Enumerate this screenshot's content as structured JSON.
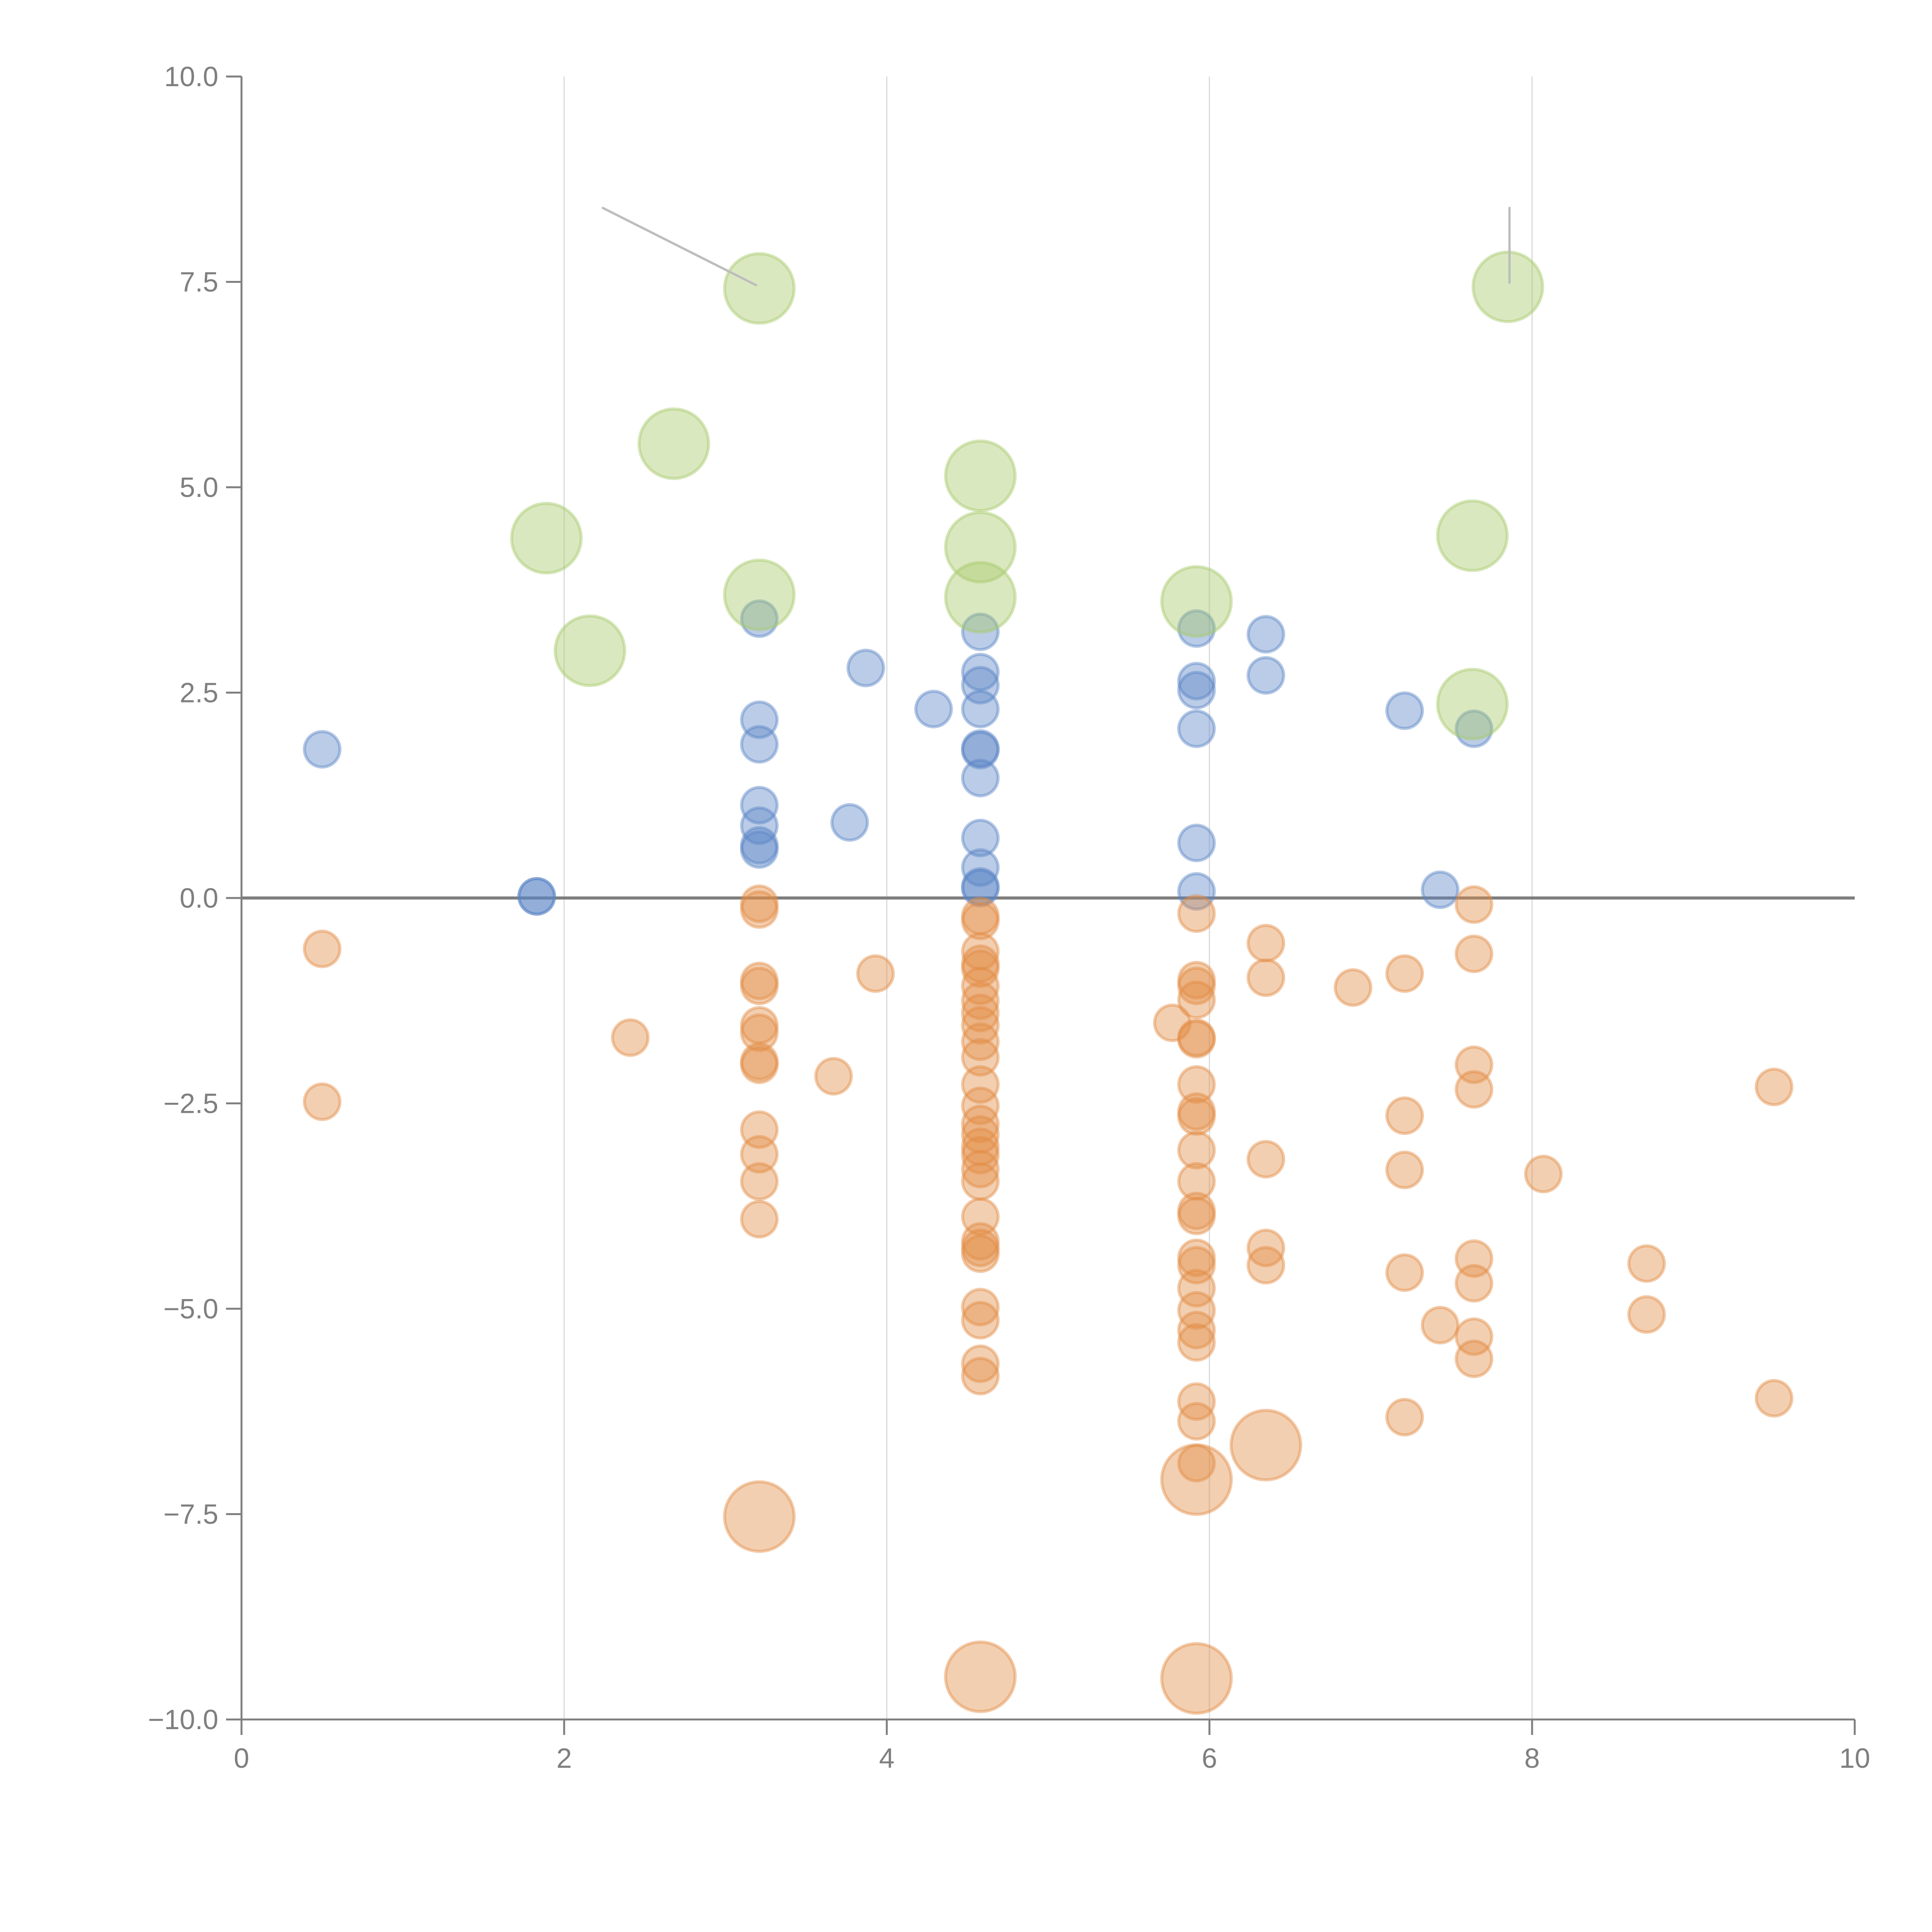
{
  "chart_data": {
    "type": "scatter",
    "title": "",
    "xlabel": "",
    "ylabel": "",
    "xlim": [
      0,
      10
    ],
    "ylim": [
      -10,
      10
    ],
    "x_ticks": [
      0,
      2,
      4,
      6,
      8,
      10
    ],
    "x_tick_labels": [
      "0",
      "2",
      "4",
      "6",
      "8",
      "10"
    ],
    "y_ticks": [
      10,
      7.5,
      5,
      2.5,
      0,
      -2.5,
      -5,
      -7.5,
      -10
    ],
    "y_tick_labels": [
      "10.0",
      "7.5",
      "5.0",
      "2.5",
      "0.0",
      "−2.5",
      "−5.0",
      "−7.5",
      "−10.0"
    ],
    "grid": "vertical",
    "reference_line_y": 0,
    "legend": "none",
    "series": [
      {
        "name": "green-large",
        "color": "#a6c96a",
        "size": "large",
        "points": [
          [
            3.21,
            7.42
          ],
          [
            7.85,
            7.44
          ],
          [
            2.68,
            5.53
          ],
          [
            4.58,
            5.14
          ],
          [
            1.89,
            4.38
          ],
          [
            4.58,
            4.27
          ],
          [
            7.63,
            4.41
          ],
          [
            3.21,
            3.69
          ],
          [
            4.58,
            3.66
          ],
          [
            5.92,
            3.61
          ],
          [
            2.16,
            3.01
          ],
          [
            7.63,
            2.36
          ]
        ]
      },
      {
        "name": "blue-positive",
        "color": "#5b86c5",
        "size": "small",
        "points": [
          [
            0.5,
            1.81
          ],
          [
            1.83,
            0.02
          ],
          [
            1.83,
            0.02
          ],
          [
            3.21,
            3.4
          ],
          [
            3.21,
            2.17
          ],
          [
            3.21,
            1.87
          ],
          [
            3.21,
            1.13
          ],
          [
            3.21,
            0.88
          ],
          [
            3.21,
            0.64
          ],
          [
            3.21,
            0.59
          ],
          [
            3.77,
            0.92
          ],
          [
            3.87,
            2.8
          ],
          [
            4.29,
            2.3
          ],
          [
            4.58,
            3.24
          ],
          [
            4.58,
            2.75
          ],
          [
            4.58,
            2.59
          ],
          [
            4.58,
            2.3
          ],
          [
            4.58,
            1.82
          ],
          [
            4.58,
            1.8
          ],
          [
            4.58,
            1.46
          ],
          [
            4.58,
            0.73
          ],
          [
            4.58,
            0.37
          ],
          [
            4.58,
            0.14
          ],
          [
            4.58,
            0.12
          ],
          [
            5.92,
            3.28
          ],
          [
            5.92,
            2.64
          ],
          [
            5.92,
            2.53
          ],
          [
            5.92,
            2.06
          ],
          [
            5.92,
            0.67
          ],
          [
            5.92,
            0.08
          ],
          [
            6.35,
            3.21
          ],
          [
            6.35,
            2.71
          ],
          [
            7.21,
            2.28
          ],
          [
            7.64,
            2.06
          ],
          [
            7.43,
            0.1
          ]
        ]
      },
      {
        "name": "orange-negative",
        "color": "#e38c45",
        "size": "small",
        "points": [
          [
            0.5,
            -0.62
          ],
          [
            0.5,
            -2.48
          ],
          [
            2.41,
            -1.7
          ],
          [
            3.21,
            -0.07
          ],
          [
            3.21,
            -0.14
          ],
          [
            3.21,
            -1.01
          ],
          [
            3.21,
            -1.07
          ],
          [
            3.21,
            -1.55
          ],
          [
            3.21,
            -1.64
          ],
          [
            3.21,
            -1.99
          ],
          [
            3.21,
            -2.03
          ],
          [
            3.21,
            -2.82
          ],
          [
            3.21,
            -3.12
          ],
          [
            3.21,
            -3.45
          ],
          [
            3.21,
            -3.91
          ],
          [
            3.67,
            -2.17
          ],
          [
            3.93,
            -0.92
          ],
          [
            4.58,
            -0.22
          ],
          [
            4.58,
            -0.28
          ],
          [
            4.58,
            -0.65
          ],
          [
            4.58,
            -0.8
          ],
          [
            4.58,
            -0.86
          ],
          [
            4.58,
            -1.07
          ],
          [
            4.58,
            -1.25
          ],
          [
            4.58,
            -1.4
          ],
          [
            4.58,
            -1.55
          ],
          [
            4.58,
            -1.75
          ],
          [
            4.58,
            -1.94
          ],
          [
            4.58,
            -2.27
          ],
          [
            4.58,
            -2.53
          ],
          [
            4.58,
            -2.75
          ],
          [
            4.58,
            -2.88
          ],
          [
            4.58,
            -3.03
          ],
          [
            4.58,
            -3.13
          ],
          [
            4.58,
            -3.3
          ],
          [
            4.58,
            -3.45
          ],
          [
            4.58,
            -3.88
          ],
          [
            4.58,
            -4.18
          ],
          [
            4.58,
            -4.26
          ],
          [
            4.58,
            -4.33
          ],
          [
            4.58,
            -4.98
          ],
          [
            4.58,
            -5.14
          ],
          [
            4.58,
            -5.67
          ],
          [
            4.58,
            -5.82
          ],
          [
            5.77,
            -1.52
          ],
          [
            5.92,
            -0.19
          ],
          [
            5.92,
            -1.0
          ],
          [
            5.92,
            -1.07
          ],
          [
            5.92,
            -1.24
          ],
          [
            5.92,
            -1.7
          ],
          [
            5.92,
            -1.72
          ],
          [
            5.92,
            -2.27
          ],
          [
            5.92,
            -2.6
          ],
          [
            5.92,
            -2.66
          ],
          [
            5.92,
            -3.07
          ],
          [
            5.92,
            -3.45
          ],
          [
            5.92,
            -3.81
          ],
          [
            5.92,
            -3.87
          ],
          [
            5.92,
            -4.38
          ],
          [
            5.92,
            -4.47
          ],
          [
            5.92,
            -4.75
          ],
          [
            5.92,
            -5.02
          ],
          [
            5.92,
            -5.26
          ],
          [
            5.92,
            -5.41
          ],
          [
            5.92,
            -6.13
          ],
          [
            5.92,
            -6.37
          ],
          [
            5.92,
            -6.88
          ],
          [
            6.35,
            -0.55
          ],
          [
            6.35,
            -0.97
          ],
          [
            6.35,
            -3.18
          ],
          [
            6.35,
            -4.26
          ],
          [
            6.35,
            -4.47
          ],
          [
            6.89,
            -1.09
          ],
          [
            7.21,
            -0.92
          ],
          [
            7.21,
            -2.65
          ],
          [
            7.21,
            -3.31
          ],
          [
            7.21,
            -4.56
          ],
          [
            7.21,
            -6.32
          ],
          [
            7.43,
            -5.2
          ],
          [
            7.64,
            -0.08
          ],
          [
            7.64,
            -0.68
          ],
          [
            7.64,
            -2.03
          ],
          [
            7.64,
            -2.33
          ],
          [
            7.64,
            -4.39
          ],
          [
            7.64,
            -4.69
          ],
          [
            7.64,
            -5.34
          ],
          [
            7.64,
            -5.61
          ],
          [
            8.07,
            -3.36
          ],
          [
            8.71,
            -4.45
          ],
          [
            8.71,
            -5.07
          ],
          [
            9.5,
            -2.3
          ],
          [
            9.5,
            -6.09
          ]
        ]
      },
      {
        "name": "orange-large",
        "color": "#e38c45",
        "size": "large",
        "points": [
          [
            3.21,
            -7.53
          ],
          [
            4.58,
            -9.48
          ],
          [
            5.92,
            -9.5
          ],
          [
            5.92,
            -7.08
          ],
          [
            6.35,
            -6.66
          ]
        ]
      }
    ],
    "annotations": [
      {
        "type": "leader-line",
        "from": [
          2.24,
          8.4
        ],
        "to": [
          3.19,
          7.46
        ],
        "color": "#bdbdbd"
      },
      {
        "type": "leader-line",
        "from": [
          7.86,
          8.4
        ],
        "to": [
          7.86,
          7.49
        ],
        "color": "#bdbdbd"
      }
    ]
  }
}
